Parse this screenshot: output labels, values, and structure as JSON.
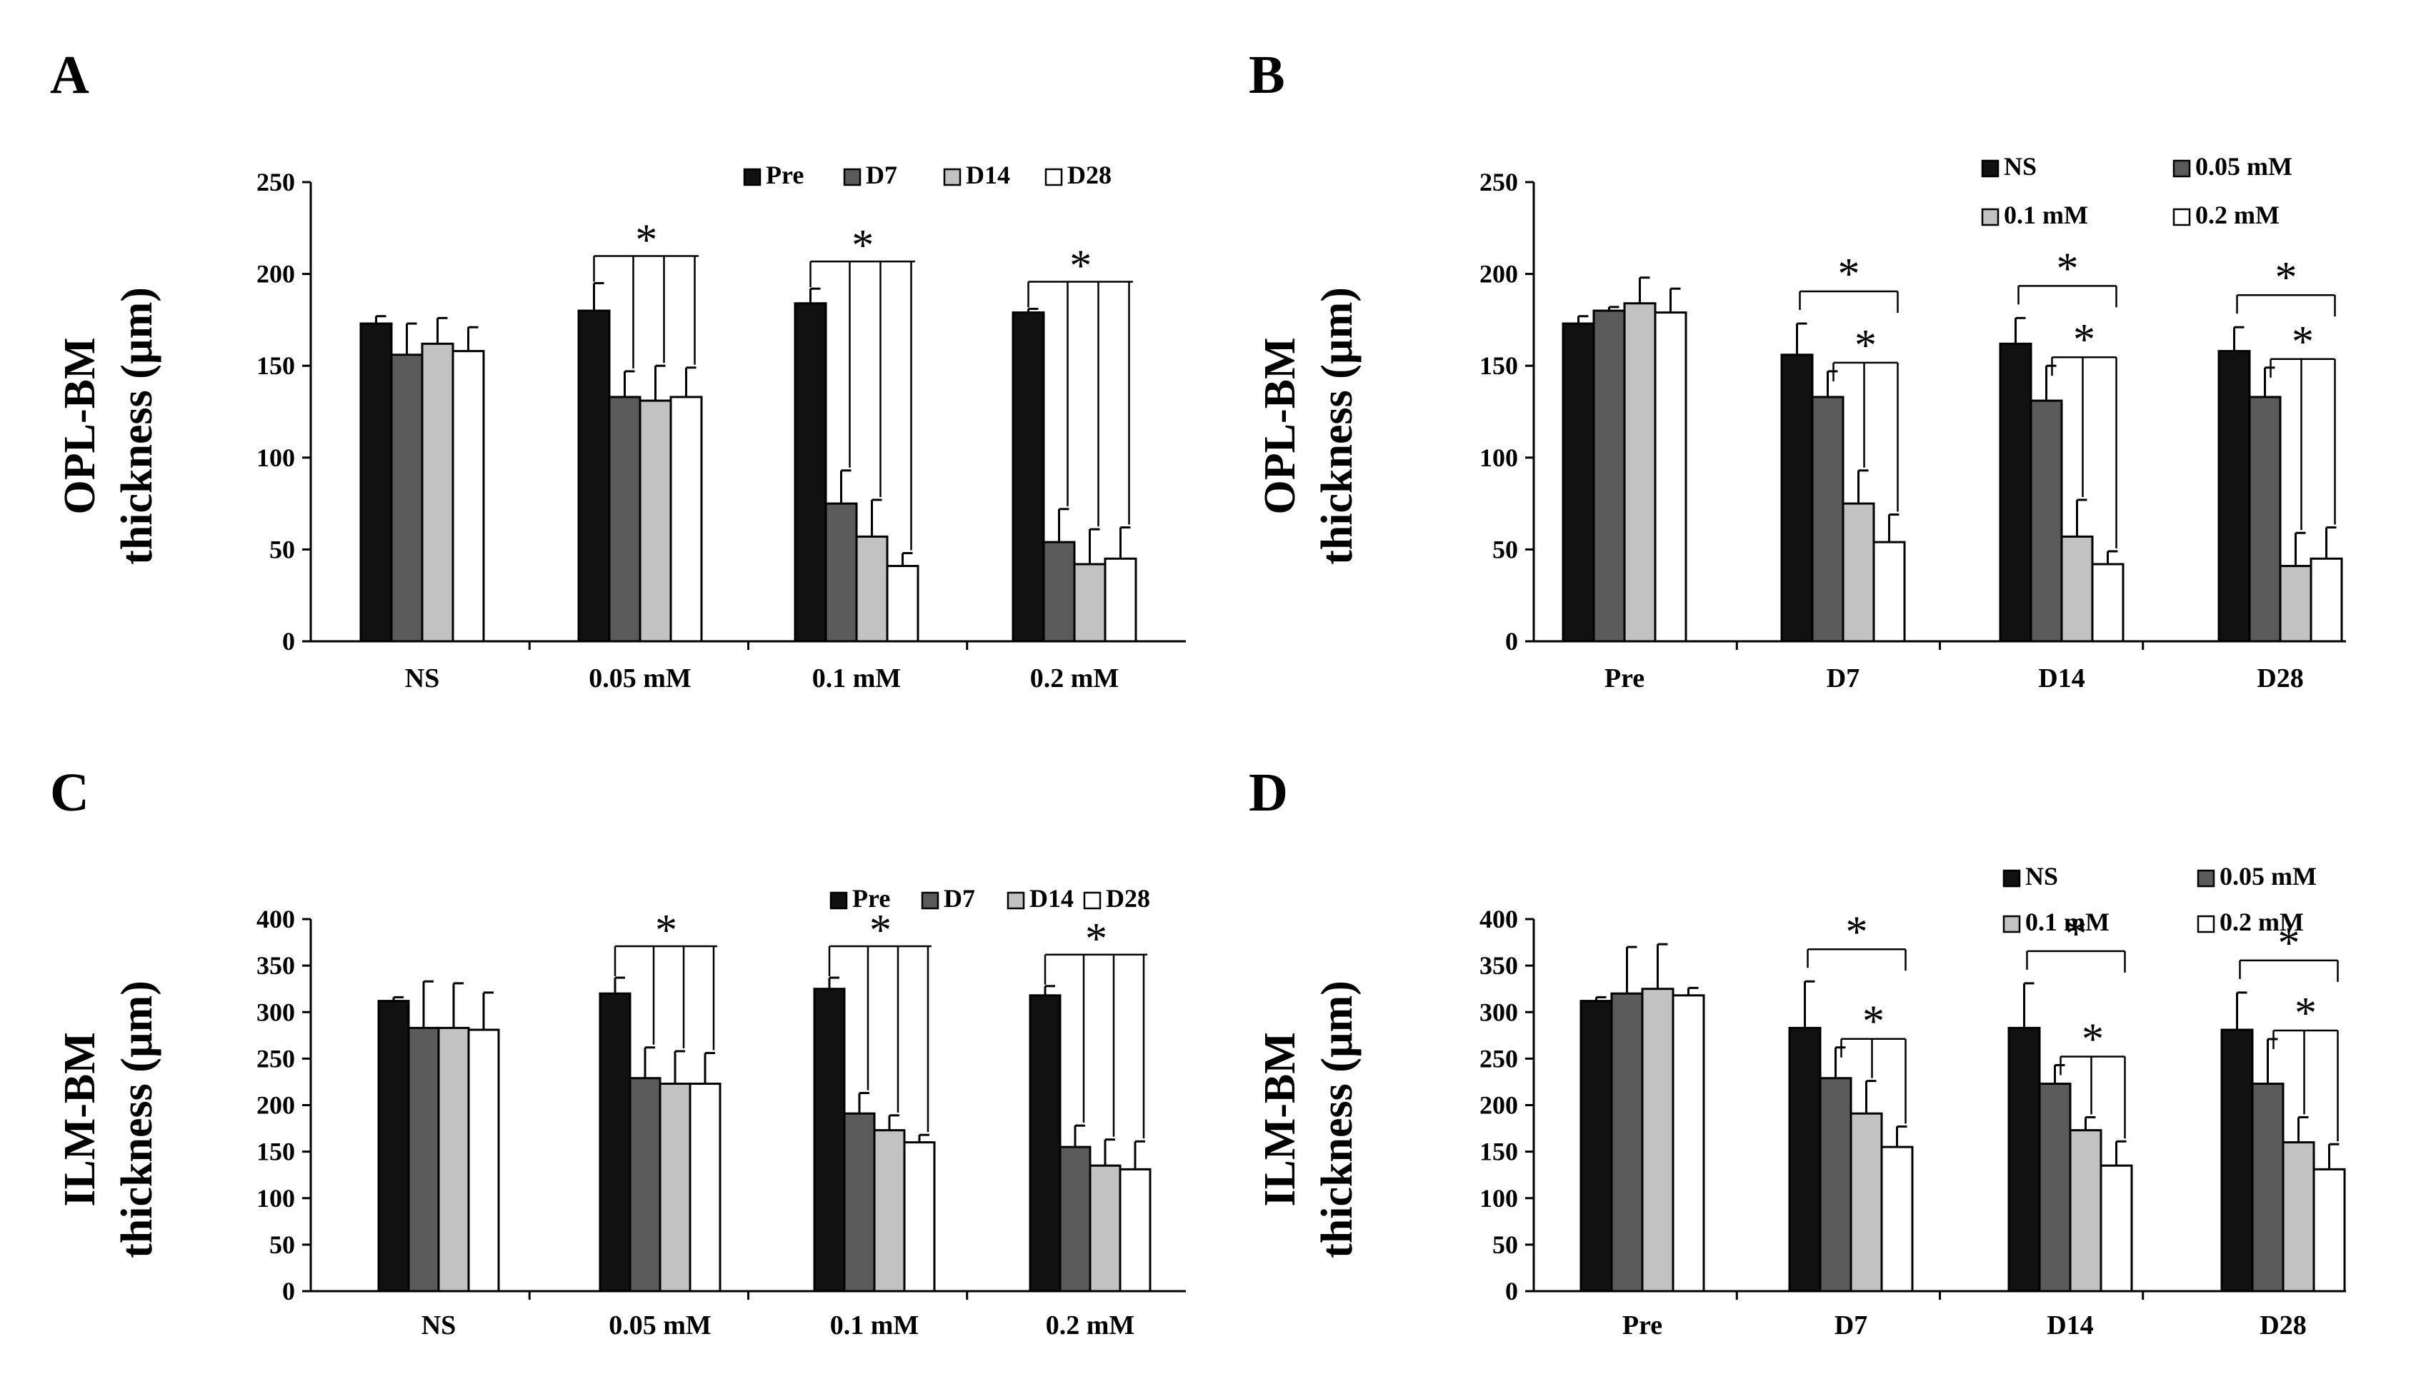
{
  "figure": {
    "colors": {
      "Pre": "#111111",
      "D7": "#5a5a5a",
      "D14": "#c2c2c2",
      "D28": "#ffffff",
      "NS": "#111111",
      "0.05 mM": "#5a5a5a",
      "0.1 mM": "#c2c2c2",
      "0.2 mM": "#ffffff"
    }
  },
  "chart_data": [
    {
      "panel": "A",
      "type": "bar",
      "ylabel": [
        "OPL-BM",
        "thickness (µm)"
      ],
      "ylim": [
        0,
        250
      ],
      "yticks": [
        0,
        50,
        100,
        150,
        200,
        250
      ],
      "categories": [
        "NS",
        "0.05 mM",
        "0.1 mM",
        "0.2 mM"
      ],
      "legend_position": "top-right",
      "series": [
        {
          "name": "Pre",
          "values": [
            173,
            180,
            184,
            179
          ],
          "errors": [
            4,
            15,
            8,
            2
          ]
        },
        {
          "name": "D7",
          "values": [
            156,
            133,
            75,
            54
          ],
          "errors": [
            17,
            14,
            18,
            18
          ]
        },
        {
          "name": "D14",
          "values": [
            162,
            131,
            57,
            42
          ],
          "errors": [
            14,
            19,
            20,
            19
          ]
        },
        {
          "name": "D28",
          "values": [
            158,
            133,
            41,
            45
          ],
          "errors": [
            13,
            16,
            7,
            17
          ]
        }
      ],
      "annotations": [
        {
          "text": "*",
          "type": "fan",
          "category": 1
        },
        {
          "text": "*",
          "type": "fan",
          "category": 2
        },
        {
          "text": "*",
          "type": "fan",
          "category": 3
        }
      ]
    },
    {
      "panel": "B",
      "type": "bar",
      "ylabel": [
        "OPL-BM",
        "thickness (µm)"
      ],
      "ylim": [
        0,
        250
      ],
      "yticks": [
        0,
        50,
        100,
        150,
        200,
        250
      ],
      "categories": [
        "Pre",
        "D7",
        "D14",
        "D28"
      ],
      "legend_position": "top-right",
      "series": [
        {
          "name": "NS",
          "values": [
            173,
            156,
            162,
            158
          ],
          "errors": [
            4,
            17,
            14,
            13
          ]
        },
        {
          "name": "0.05 mM",
          "values": [
            180,
            133,
            131,
            133
          ],
          "errors": [
            2,
            14,
            19,
            16
          ]
        },
        {
          "name": "0.1 mM",
          "values": [
            184,
            75,
            57,
            41
          ],
          "errors": [
            14,
            18,
            20,
            18
          ]
        },
        {
          "name": "0.2 mM",
          "values": [
            179,
            54,
            42,
            45
          ],
          "errors": [
            13,
            15,
            7,
            17
          ]
        }
      ],
      "annotations": [
        {
          "text": "*",
          "type": "pairs",
          "category": 1
        },
        {
          "text": "*",
          "type": "pairs",
          "category": 2
        },
        {
          "text": "*",
          "type": "pairs",
          "category": 3
        }
      ]
    },
    {
      "panel": "C",
      "type": "bar",
      "ylabel": [
        "ILM-BM",
        "thickness (µm)"
      ],
      "ylim": [
        0,
        400
      ],
      "yticks": [
        0,
        50,
        100,
        150,
        200,
        250,
        300,
        350,
        400
      ],
      "categories": [
        "NS",
        "0.05 mM",
        "0.1 mM",
        "0.2 mM"
      ],
      "legend_position": "top-right",
      "series": [
        {
          "name": "Pre",
          "values": [
            312,
            320,
            325,
            318
          ],
          "errors": [
            4,
            17,
            12,
            10
          ]
        },
        {
          "name": "D7",
          "values": [
            283,
            229,
            191,
            155
          ],
          "errors": [
            50,
            33,
            22,
            23
          ]
        },
        {
          "name": "D14",
          "values": [
            283,
            223,
            173,
            135
          ],
          "errors": [
            48,
            35,
            16,
            28
          ]
        },
        {
          "name": "D28",
          "values": [
            281,
            223,
            160,
            131
          ],
          "errors": [
            40,
            33,
            8,
            30
          ]
        }
      ],
      "annotations": [
        {
          "text": "*",
          "type": "fan",
          "category": 1
        },
        {
          "text": "*",
          "type": "fan",
          "category": 2
        },
        {
          "text": "*",
          "type": "fan",
          "category": 3
        }
      ]
    },
    {
      "panel": "D",
      "type": "bar",
      "ylabel": [
        "ILM-BM",
        "thickness (µm)"
      ],
      "ylim": [
        0,
        400
      ],
      "yticks": [
        0,
        50,
        100,
        150,
        200,
        250,
        300,
        350,
        400
      ],
      "categories": [
        "Pre",
        "D7",
        "D14",
        "D28"
      ],
      "legend_position": "top-right",
      "series": [
        {
          "name": "NS",
          "values": [
            312,
            283,
            283,
            281
          ],
          "errors": [
            4,
            50,
            48,
            40
          ]
        },
        {
          "name": "0.05 mM",
          "values": [
            320,
            229,
            223,
            223
          ],
          "errors": [
            50,
            33,
            20,
            48
          ]
        },
        {
          "name": "0.1 mM",
          "values": [
            325,
            191,
            173,
            160
          ],
          "errors": [
            48,
            35,
            14,
            27
          ]
        },
        {
          "name": "0.2 mM",
          "values": [
            318,
            155,
            135,
            131
          ],
          "errors": [
            8,
            22,
            26,
            27
          ]
        }
      ],
      "annotations": [
        {
          "text": "*",
          "type": "pairs",
          "category": 1
        },
        {
          "text": "*",
          "type": "pairs",
          "category": 2
        },
        {
          "text": "*",
          "type": "pairs",
          "category": 3
        }
      ]
    }
  ]
}
